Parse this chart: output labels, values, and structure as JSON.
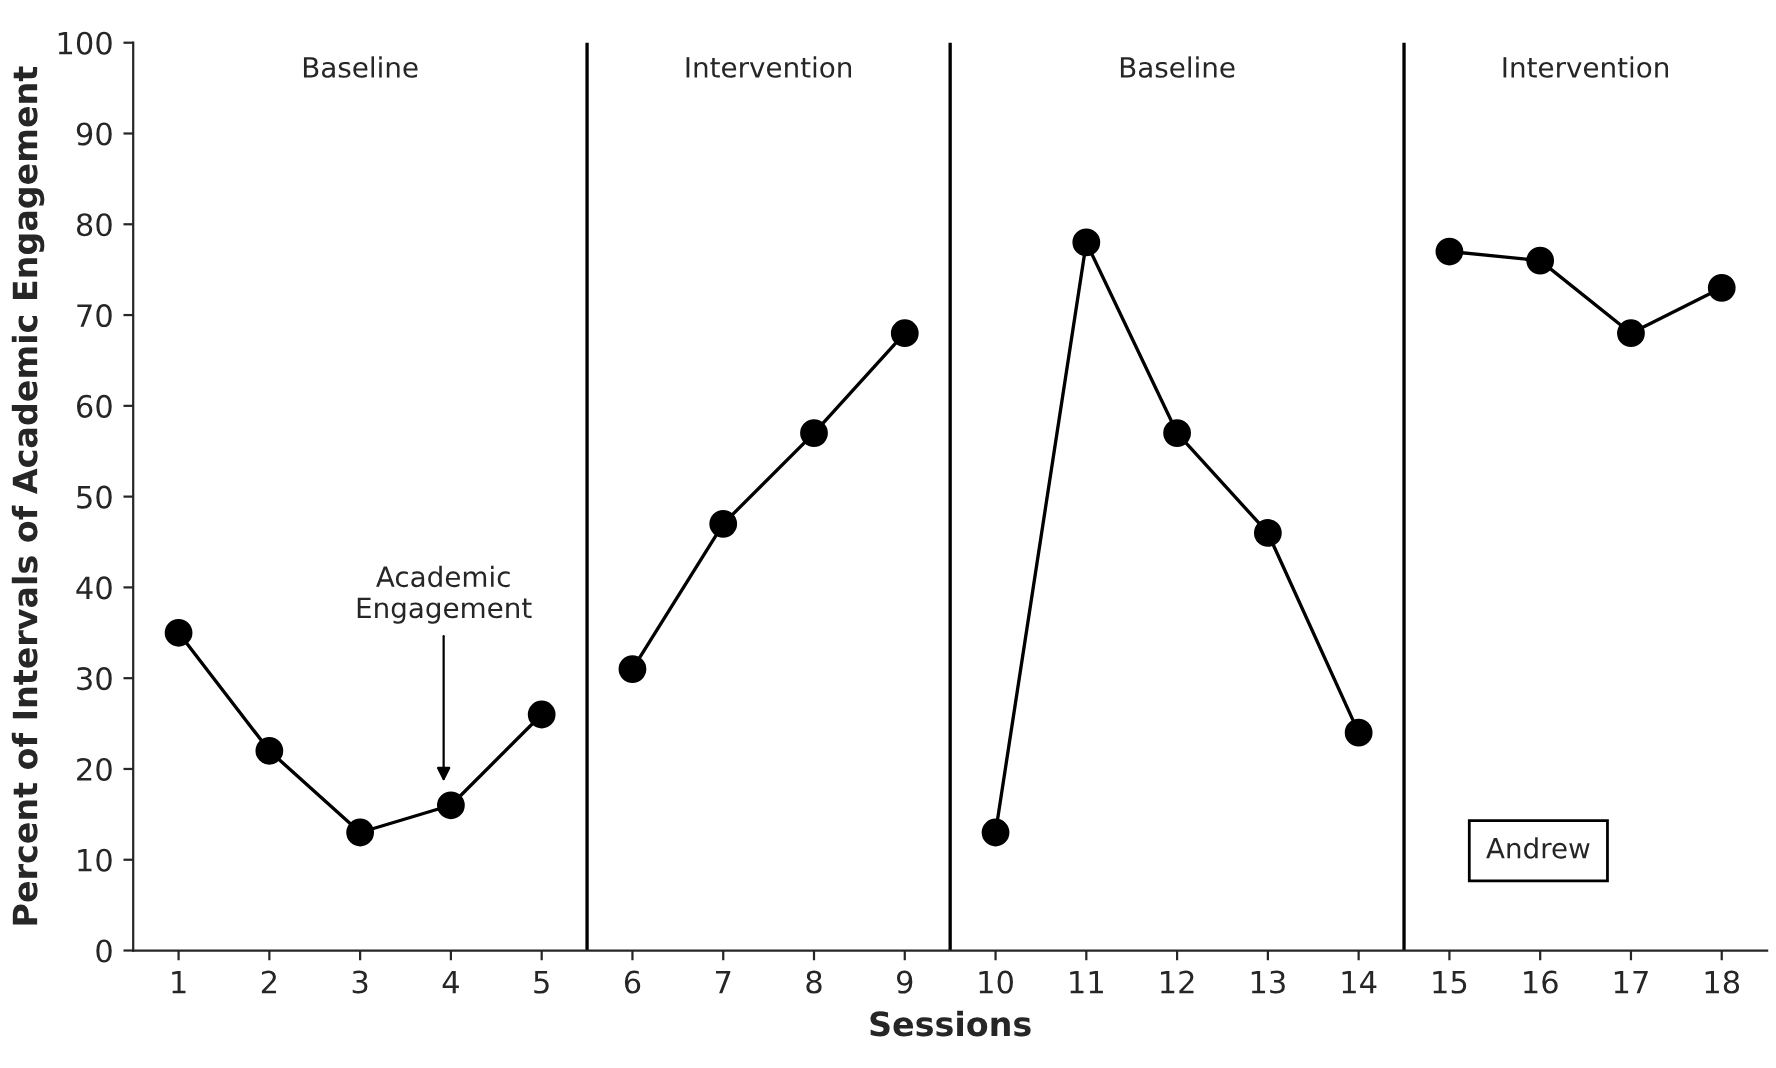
{
  "chart_data": {
    "type": "line",
    "xlabel": "Sessions",
    "ylabel": "Percent of Intervals of Academic Engagement",
    "x": [
      1,
      2,
      3,
      4,
      5,
      6,
      7,
      8,
      9,
      10,
      11,
      12,
      13,
      14,
      15,
      16,
      17,
      18
    ],
    "series": [
      {
        "color": "#000000",
        "values": [
          35,
          22,
          13,
          16,
          26,
          null,
          null,
          null,
          null,
          null,
          null,
          null,
          null,
          null,
          null,
          null,
          null,
          null
        ]
      },
      {
        "color": "#000000",
        "values": [
          null,
          null,
          null,
          null,
          null,
          31,
          47,
          57,
          68,
          null,
          null,
          null,
          null,
          null,
          null,
          null,
          null,
          null
        ]
      },
      {
        "color": "#000000",
        "values": [
          null,
          null,
          null,
          null,
          null,
          null,
          null,
          null,
          null,
          13,
          78,
          57,
          46,
          24,
          null,
          null,
          null,
          null
        ]
      },
      {
        "color": "#000000",
        "values": [
          null,
          null,
          null,
          null,
          null,
          null,
          null,
          null,
          null,
          null,
          null,
          null,
          null,
          null,
          77,
          76,
          68,
          73
        ]
      }
    ],
    "xlim": [
      0.5,
      18.5
    ],
    "xticks": [
      1,
      2,
      3,
      4,
      5,
      6,
      7,
      8,
      9,
      10,
      11,
      12,
      13,
      14,
      15,
      16,
      17,
      18
    ],
    "ylim": [
      0,
      100
    ],
    "yticks": [
      0,
      10,
      20,
      30,
      40,
      50,
      60,
      70,
      80,
      90,
      100
    ],
    "ref_lines": [
      {
        "axis": "x",
        "value": 5.5,
        "color": "#000000"
      },
      {
        "axis": "x",
        "value": 9.5,
        "color": "#000000"
      },
      {
        "axis": "x",
        "value": 14.5,
        "color": "#000000"
      }
    ],
    "annotations": [
      "Baseline",
      "Intervention",
      "Baseline",
      "Intervention",
      "Academic\nEngagement",
      "Andrew"
    ],
    "marker": "circle",
    "line_style": "solid",
    "grid": false,
    "legend": false
  }
}
